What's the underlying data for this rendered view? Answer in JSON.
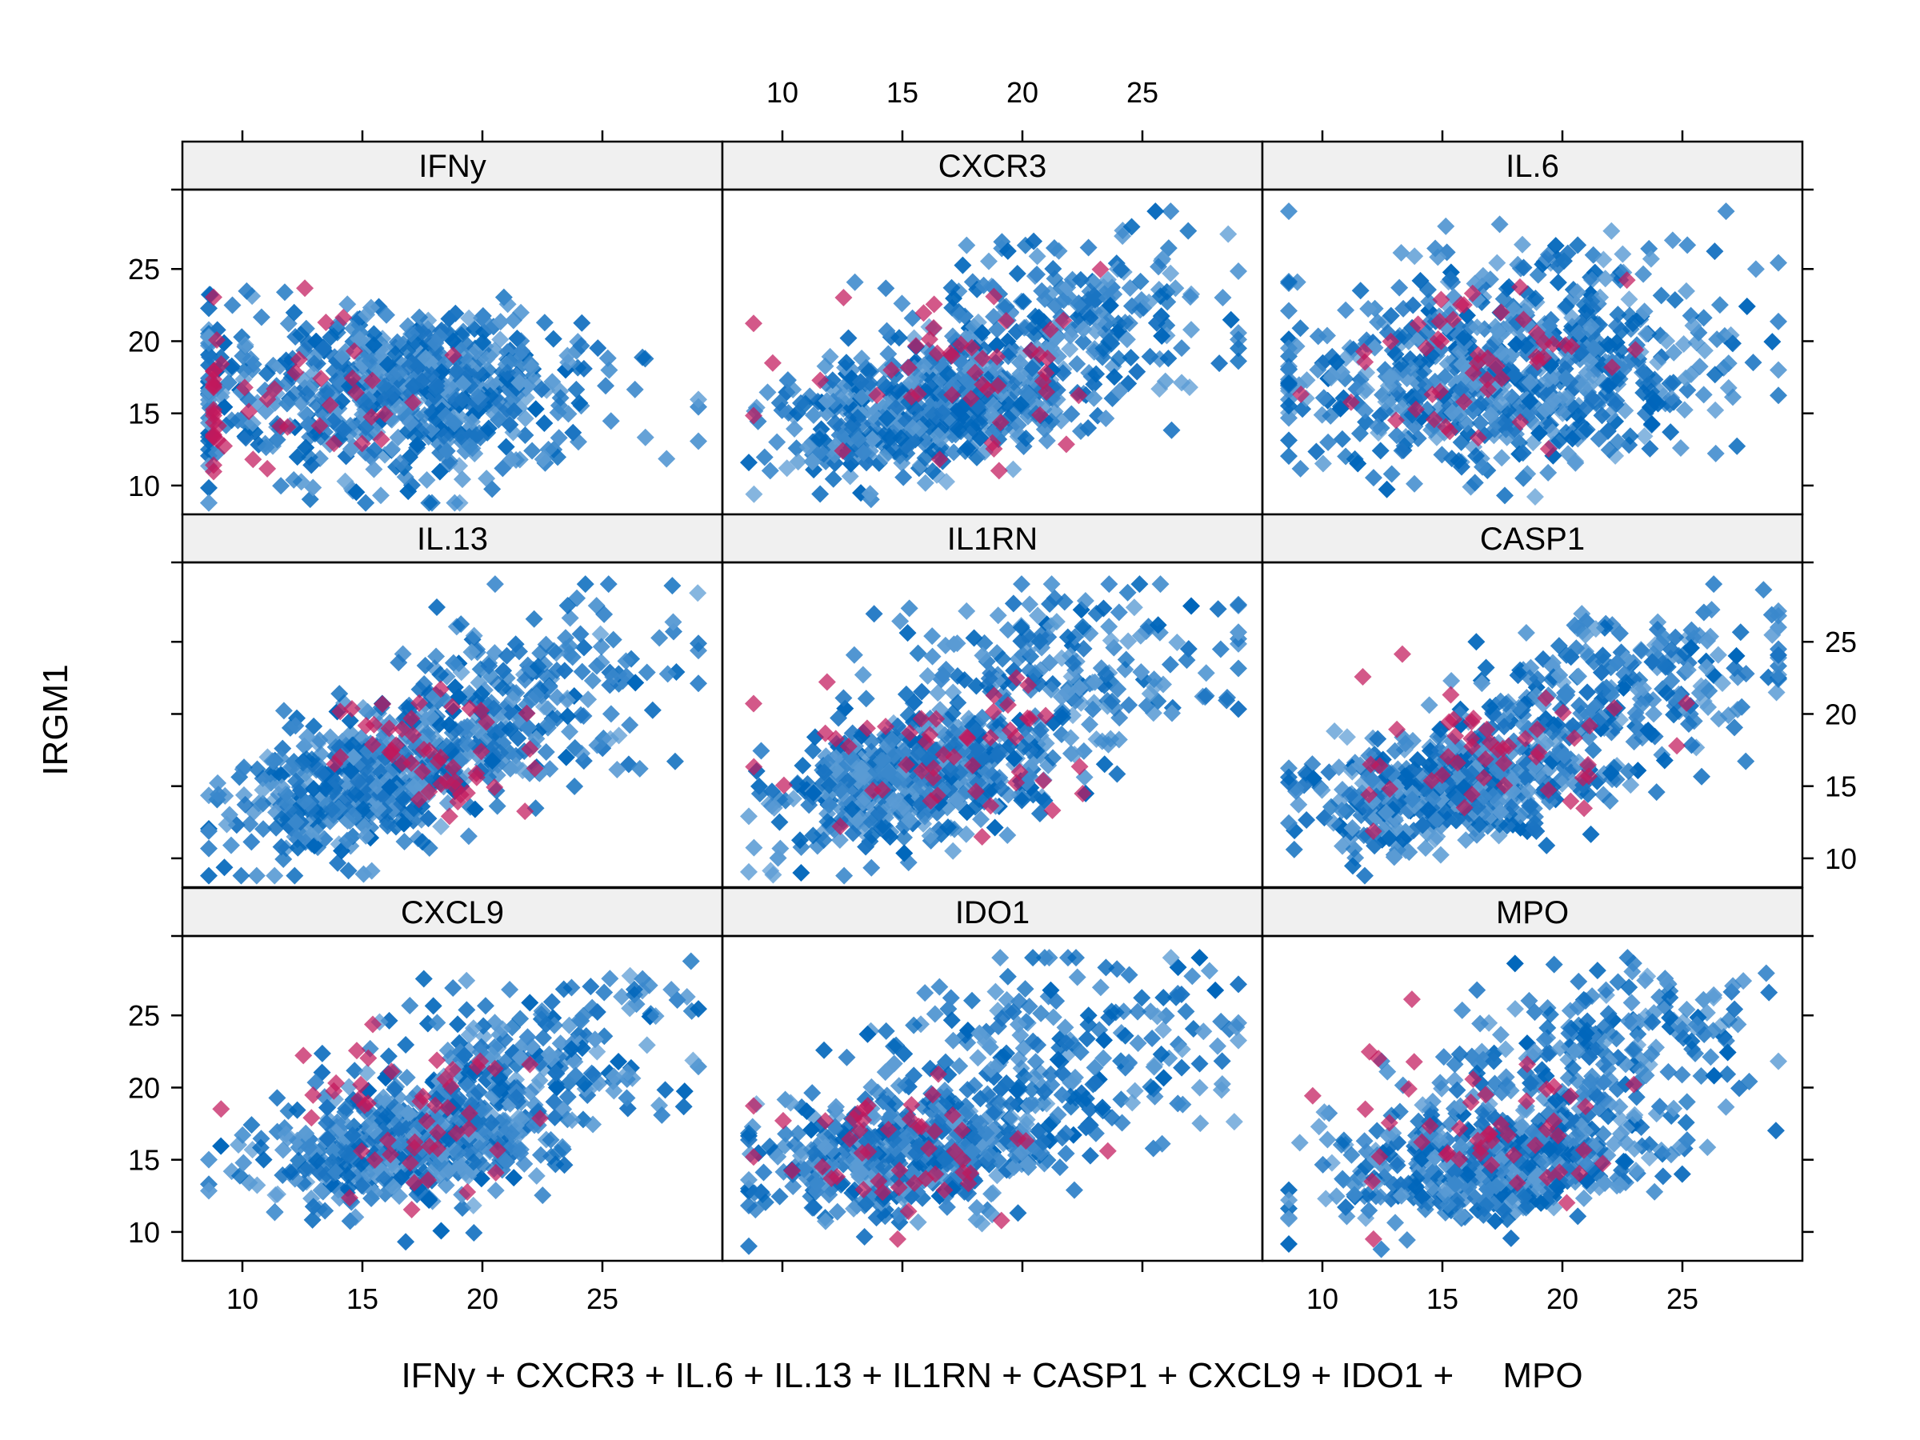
{
  "chart_data": {
    "type": "scatter",
    "layout": {
      "columns": 3,
      "rows": 3
    },
    "xlabel": "IFNy + CXCR3 + IL.6 + IL.13 + IL1RN + CASP1 + CXCL9 + IDO1 +     MPO",
    "ylabel": "IRGM1",
    "xlim": [
      7.5,
      30
    ],
    "ylim": [
      8,
      30.5
    ],
    "xticks": [
      10,
      15,
      20,
      25
    ],
    "yticks": [
      10,
      15,
      20,
      25
    ],
    "xtick_labels": [
      "10",
      "15",
      "20",
      "25"
    ],
    "ytick_labels": [
      "10",
      "15",
      "20",
      "25"
    ],
    "grid": false,
    "colors": {
      "main_series": "#0066bb",
      "highlight_series": "#c2185b",
      "strip_background": "#f0f0f0",
      "frame": "#000000"
    },
    "panels": [
      {
        "name": "IFNy",
        "row": 0,
        "col": 0,
        "cx": [
          16.5,
          17.5
        ],
        "cy": [
          16.5,
          17.0
        ],
        "sx": [
          4.6,
          2.5
        ],
        "sy": [
          3.2,
          2.4
        ],
        "slope": 0.02,
        "highlight_cx": 10.8,
        "highlight_cy": 16.5,
        "highlight_sx": 4.5,
        "highlight_sy": 2.8
      },
      {
        "name": "CXCR3",
        "row": 0,
        "col": 1,
        "cx": [
          16.5,
          22.0
        ],
        "cy": [
          15.5,
          22.5
        ],
        "sx": [
          3.4,
          3.6
        ],
        "sy": [
          2.4,
          3.0
        ],
        "slope": 0.25,
        "highlight_cx": 17.5,
        "highlight_cy": 18.0,
        "highlight_sx": 3.5,
        "highlight_sy": 3.0
      },
      {
        "name": "IL.6",
        "row": 0,
        "col": 2,
        "cx": [
          17.5,
          18.5
        ],
        "cy": [
          16.5,
          21.0
        ],
        "sx": [
          4.6,
          4.5
        ],
        "sy": [
          2.8,
          3.2
        ],
        "slope": 0.05,
        "highlight_cx": 17.0,
        "highlight_cy": 18.0,
        "highlight_sx": 3.0,
        "highlight_sy": 2.8
      },
      {
        "name": "IL.13",
        "row": 1,
        "col": 0,
        "cx": [
          15.5,
          21.0
        ],
        "cy": [
          15.5,
          20.5
        ],
        "sx": [
          3.0,
          3.4
        ],
        "sy": [
          2.3,
          3.4
        ],
        "slope": 0.4,
        "highlight_cx": 17.5,
        "highlight_cy": 17.5,
        "highlight_sx": 2.8,
        "highlight_sy": 3.0
      },
      {
        "name": "IL1RN",
        "row": 1,
        "col": 1,
        "cx": [
          15.5,
          21.0
        ],
        "cy": [
          15.5,
          22.5
        ],
        "sx": [
          3.0,
          4.0
        ],
        "sy": [
          2.0,
          3.0
        ],
        "slope": 0.3,
        "highlight_cx": 16.5,
        "highlight_cy": 17.0,
        "highlight_sx": 3.5,
        "highlight_sy": 3.2
      },
      {
        "name": "CASP1",
        "row": 1,
        "col": 2,
        "cx": [
          15.5,
          22.5
        ],
        "cy": [
          15.0,
          22.0
        ],
        "sx": [
          3.0,
          3.6
        ],
        "sy": [
          2.0,
          2.6
        ],
        "slope": 0.25,
        "highlight_cx": 17.5,
        "highlight_cy": 17.5,
        "highlight_sx": 3.2,
        "highlight_sy": 2.8
      },
      {
        "name": "CXCL9",
        "row": 2,
        "col": 0,
        "cx": [
          17.0,
          21.5
        ],
        "cy": [
          16.0,
          21.5
        ],
        "sx": [
          3.4,
          3.6
        ],
        "sy": [
          2.2,
          3.0
        ],
        "slope": 0.3,
        "highlight_cx": 17.5,
        "highlight_cy": 18.0,
        "highlight_sx": 3.0,
        "highlight_sy": 2.8
      },
      {
        "name": "IDO1",
        "row": 2,
        "col": 1,
        "cx": [
          15.5,
          21.5
        ],
        "cy": [
          15.5,
          22.0
        ],
        "sx": [
          3.2,
          4.0
        ],
        "sy": [
          2.0,
          3.2
        ],
        "slope": 0.15,
        "highlight_cx": 15.0,
        "highlight_cy": 16.5,
        "highlight_sx": 3.0,
        "highlight_sy": 2.5
      },
      {
        "name": "MPO",
        "row": 2,
        "col": 2,
        "cx": [
          17.0,
          21.5
        ],
        "cy": [
          15.0,
          22.5
        ],
        "sx": [
          3.4,
          3.6
        ],
        "sy": [
          2.0,
          3.0
        ],
        "slope": 0.15,
        "highlight_cx": 16.5,
        "highlight_cy": 17.0,
        "highlight_sx": 3.4,
        "highlight_sy": 3.0
      }
    ]
  }
}
